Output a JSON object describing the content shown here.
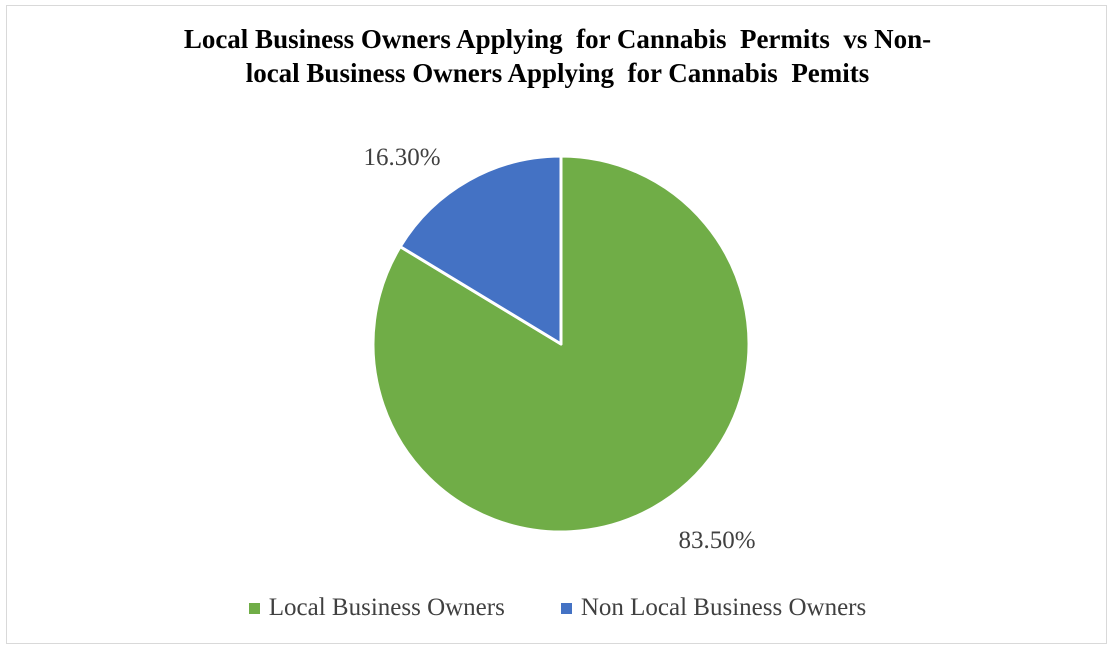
{
  "chart_data": {
    "type": "pie",
    "title_lines": [
      "Local Business Owners Applying  for Cannabis  Permits  vs Non-",
      "local Business Owners Applying  for Cannabis  Pemits"
    ],
    "slices": [
      {
        "name": "Local Business Owners",
        "value": 83.5,
        "label": "83.50%",
        "color": "#70ad47"
      },
      {
        "name": "Non Local Business Owners",
        "value": 16.3,
        "label": "16.30%",
        "color": "#4472c4"
      }
    ],
    "start_angle_deg": 0,
    "direction": "clockwise",
    "legend_position": "bottom"
  }
}
